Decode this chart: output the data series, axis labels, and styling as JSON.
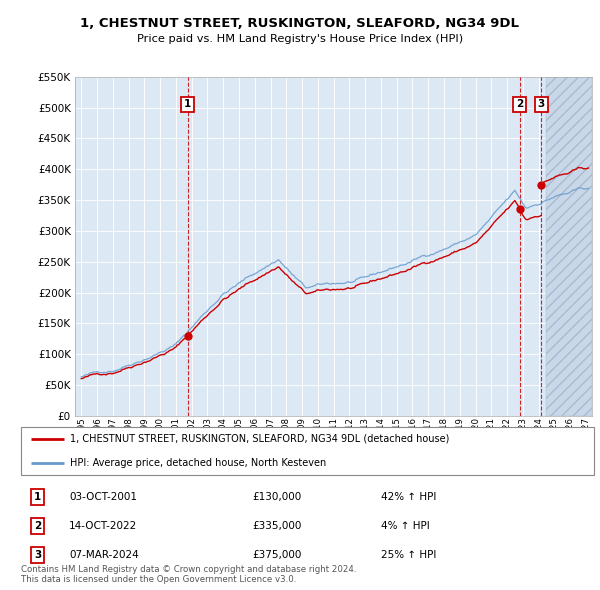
{
  "title": "1, CHESTNUT STREET, RUSKINGTON, SLEAFORD, NG34 9DL",
  "subtitle": "Price paid vs. HM Land Registry's House Price Index (HPI)",
  "legend_line1": "1, CHESTNUT STREET, RUSKINGTON, SLEAFORD, NG34 9DL (detached house)",
  "legend_line2": "HPI: Average price, detached house, North Kesteven",
  "footnote1": "Contains HM Land Registry data © Crown copyright and database right 2024.",
  "footnote2": "This data is licensed under the Open Government Licence v3.0.",
  "sale_color": "#cc0000",
  "hpi_color": "#6699cc",
  "chart_bg": "#dce9f5",
  "grid_color": "#ffffff",
  "hatch_color": "#c8d8e8",
  "ylim": [
    0,
    550000
  ],
  "yticks": [
    0,
    50000,
    100000,
    150000,
    200000,
    250000,
    300000,
    350000,
    400000,
    450000,
    500000,
    550000
  ],
  "xlim_left": 1994.6,
  "xlim_right": 2027.4,
  "hatch_start": 2024.5,
  "sale1_t": 2001.75,
  "sale1_price": 130000,
  "sale2_t": 2022.79,
  "sale2_price": 335000,
  "sale3_t": 2024.18,
  "sale3_price": 375000,
  "transactions": [
    {
      "label": "1",
      "date": "03-OCT-2001",
      "price": "£130,000",
      "hpi": "42% ↑ HPI"
    },
    {
      "label": "2",
      "date": "14-OCT-2022",
      "price": "£335,000",
      "hpi": "4% ↑ HPI"
    },
    {
      "label": "3",
      "date": "07-MAR-2024",
      "price": "£375,000",
      "hpi": "25% ↑ HPI"
    }
  ]
}
